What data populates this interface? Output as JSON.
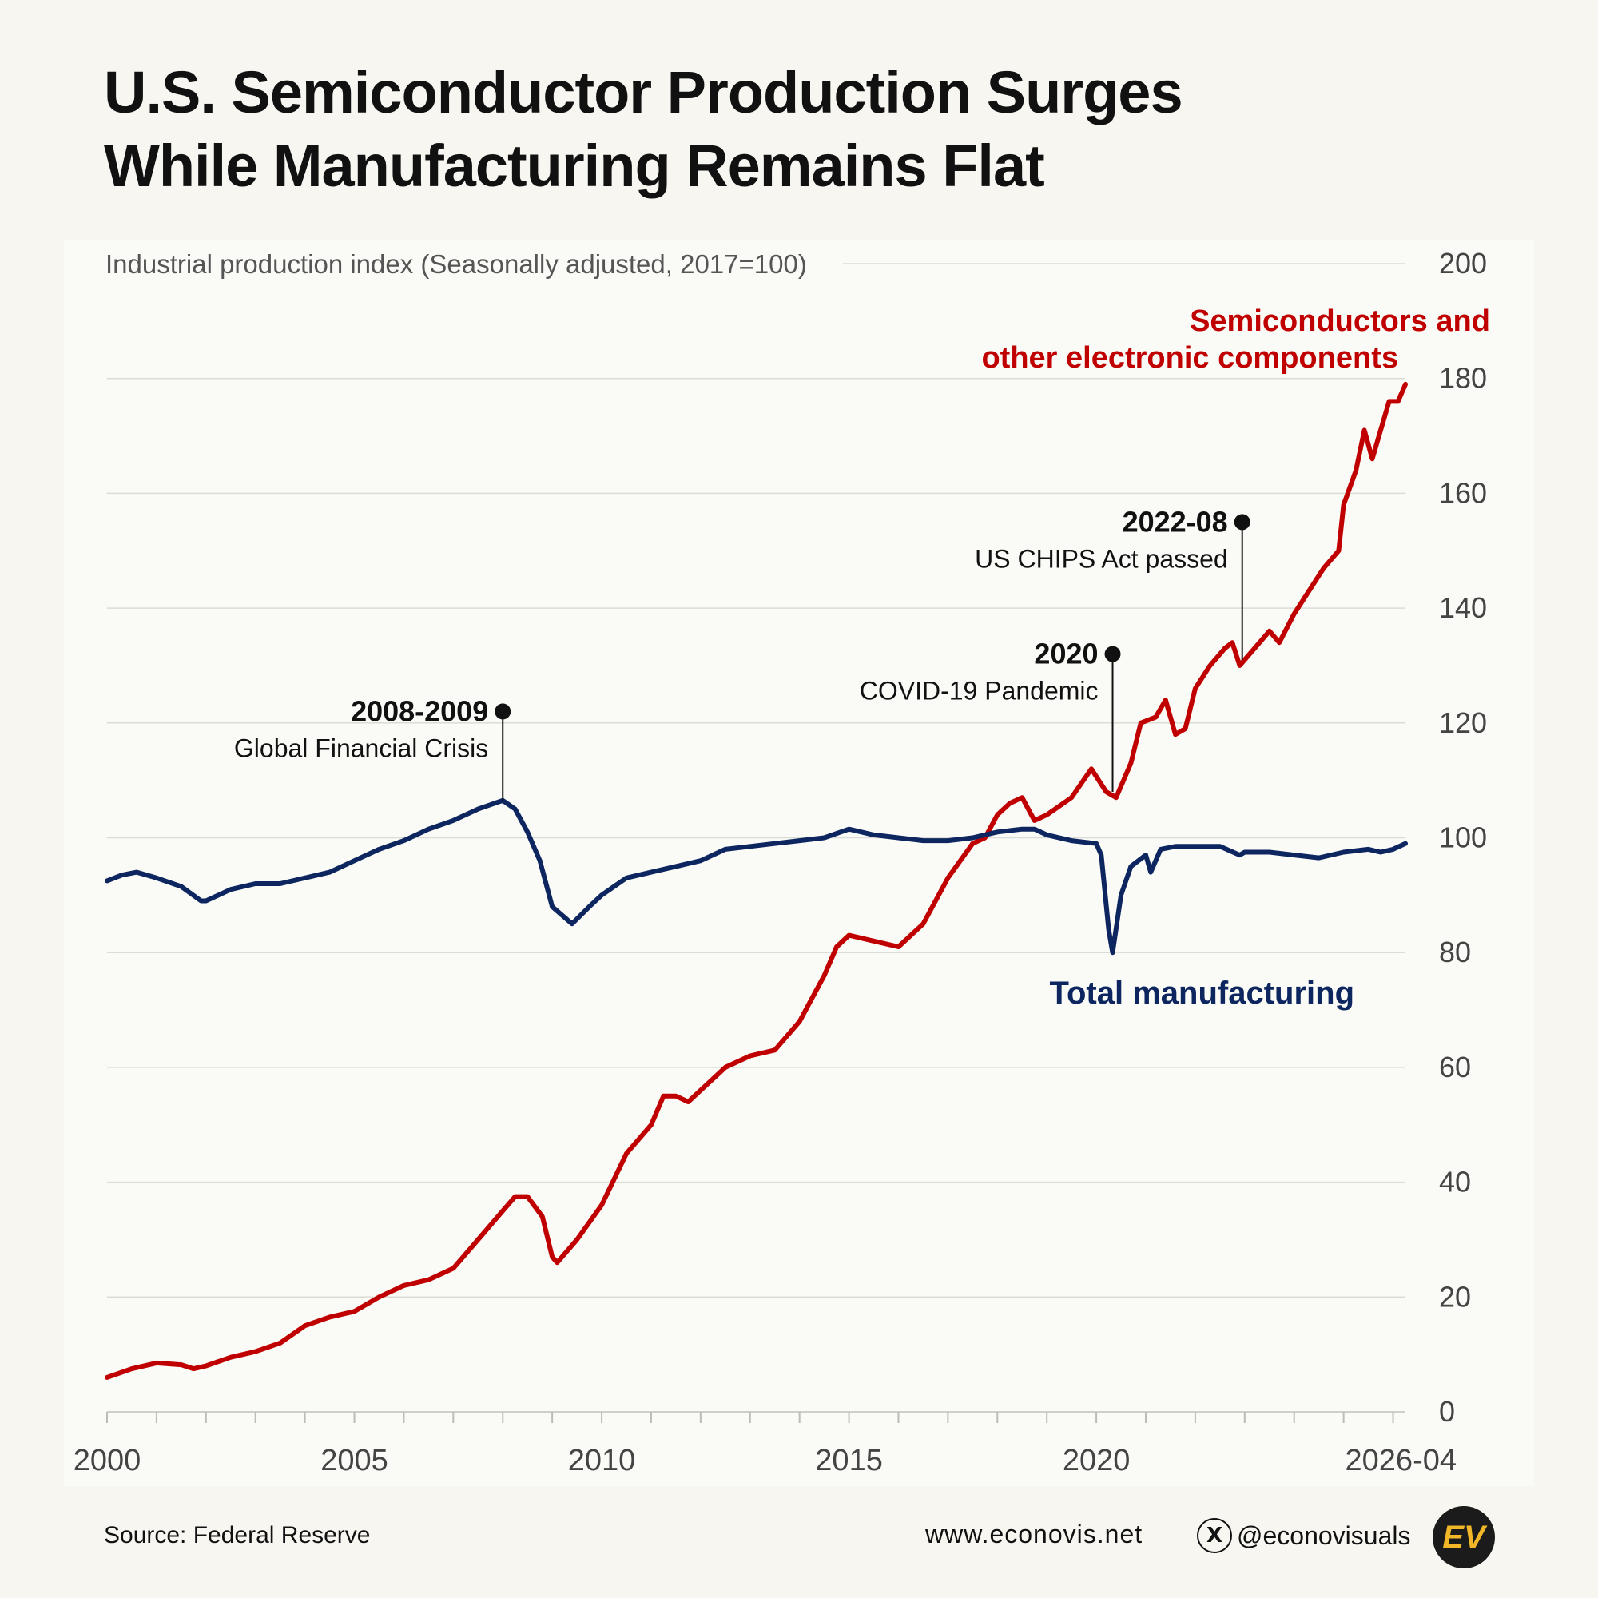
{
  "title_lines": [
    "U.S. Semiconductor Production Surges",
    "While Manufacturing Remains Flat"
  ],
  "footer": {
    "source": "Source: Federal Reserve",
    "website": "www.econovis.net",
    "handle": "@econovisuals",
    "x_icon": "x-logo-icon",
    "logo_text": "EV"
  },
  "colors": {
    "background": "#f7f6f1",
    "semiconductors": "#c00000",
    "manufacturing": "#0d2660",
    "grid": "#dcdcd6",
    "text": "#111111",
    "axis_text": "#444444"
  },
  "chart_data": {
    "type": "line",
    "ylabel": "Industrial production index (Seasonally adjusted, 2017=100)",
    "xlim": [
      "2000-01",
      "2026-04"
    ],
    "ylim": [
      0,
      200
    ],
    "y_ticks": [
      0,
      20,
      40,
      60,
      80,
      100,
      120,
      140,
      160,
      180,
      200
    ],
    "x_tick_labels": [
      {
        "x": 2000,
        "label": "2000"
      },
      {
        "x": 2005,
        "label": "2005"
      },
      {
        "x": 2010,
        "label": "2010"
      },
      {
        "x": 2015,
        "label": "2015"
      },
      {
        "x": 2020,
        "label": "2020"
      },
      {
        "x": 2026.25,
        "label": "2026-04"
      }
    ],
    "grid": true,
    "series": [
      {
        "name": "Semiconductors and other electronic components",
        "label_lines": [
          "Semiconductors and",
          "other electronic components"
        ],
        "color": "#c00000",
        "points": [
          [
            2000.0,
            6
          ],
          [
            2000.5,
            7.5
          ],
          [
            2001.0,
            8.5
          ],
          [
            2001.5,
            8.2
          ],
          [
            2001.75,
            7.5
          ],
          [
            2002.0,
            8
          ],
          [
            2002.5,
            9.5
          ],
          [
            2003.0,
            10.5
          ],
          [
            2003.5,
            12
          ],
          [
            2004.0,
            15
          ],
          [
            2004.5,
            16.5
          ],
          [
            2005.0,
            17.5
          ],
          [
            2005.5,
            20
          ],
          [
            2006.0,
            22
          ],
          [
            2006.5,
            23
          ],
          [
            2007.0,
            25
          ],
          [
            2007.5,
            30
          ],
          [
            2008.0,
            35
          ],
          [
            2008.25,
            37.5
          ],
          [
            2008.5,
            37.5
          ],
          [
            2008.8,
            34
          ],
          [
            2009.0,
            27
          ],
          [
            2009.1,
            26
          ],
          [
            2009.5,
            30
          ],
          [
            2010.0,
            36
          ],
          [
            2010.5,
            45
          ],
          [
            2011.0,
            50
          ],
          [
            2011.25,
            55
          ],
          [
            2011.5,
            55
          ],
          [
            2011.75,
            54
          ],
          [
            2012.0,
            56
          ],
          [
            2012.5,
            60
          ],
          [
            2013.0,
            62
          ],
          [
            2013.5,
            63
          ],
          [
            2014.0,
            68
          ],
          [
            2014.5,
            76
          ],
          [
            2014.75,
            81
          ],
          [
            2015.0,
            83
          ],
          [
            2015.5,
            82
          ],
          [
            2016.0,
            81
          ],
          [
            2016.5,
            85
          ],
          [
            2017.0,
            93
          ],
          [
            2017.5,
            99
          ],
          [
            2017.75,
            100
          ],
          [
            2018.0,
            104
          ],
          [
            2018.25,
            106
          ],
          [
            2018.5,
            107
          ],
          [
            2018.75,
            103
          ],
          [
            2019.0,
            104
          ],
          [
            2019.5,
            107
          ],
          [
            2019.9,
            112
          ],
          [
            2020.2,
            108
          ],
          [
            2020.4,
            107
          ],
          [
            2020.7,
            113
          ],
          [
            2020.9,
            120
          ],
          [
            2021.2,
            121
          ],
          [
            2021.4,
            124
          ],
          [
            2021.6,
            118
          ],
          [
            2021.8,
            119
          ],
          [
            2022.0,
            126
          ],
          [
            2022.3,
            130
          ],
          [
            2022.6,
            133
          ],
          [
            2022.75,
            134
          ],
          [
            2022.9,
            130
          ],
          [
            2023.2,
            133
          ],
          [
            2023.5,
            136
          ],
          [
            2023.7,
            134
          ],
          [
            2024.0,
            139
          ],
          [
            2024.3,
            143
          ],
          [
            2024.6,
            147
          ],
          [
            2024.9,
            150
          ],
          [
            2025.0,
            158
          ],
          [
            2025.25,
            164
          ],
          [
            2025.42,
            171
          ],
          [
            2025.58,
            166
          ],
          [
            2025.75,
            171
          ],
          [
            2025.92,
            176
          ],
          [
            2026.1,
            176
          ],
          [
            2026.25,
            179
          ]
        ]
      },
      {
        "name": "Total manufacturing",
        "label_lines": [
          "Total manufacturing"
        ],
        "color": "#0d2660",
        "points": [
          [
            2000.0,
            92.5
          ],
          [
            2000.3,
            93.5
          ],
          [
            2000.6,
            94
          ],
          [
            2001.0,
            93
          ],
          [
            2001.5,
            91.5
          ],
          [
            2001.9,
            89
          ],
          [
            2002.0,
            89
          ],
          [
            2002.5,
            91
          ],
          [
            2003.0,
            92
          ],
          [
            2003.5,
            92
          ],
          [
            2004.0,
            93
          ],
          [
            2004.5,
            94
          ],
          [
            2005.0,
            96
          ],
          [
            2005.5,
            98
          ],
          [
            2006.0,
            99.5
          ],
          [
            2006.5,
            101.5
          ],
          [
            2007.0,
            103
          ],
          [
            2007.5,
            105
          ],
          [
            2008.0,
            106.5
          ],
          [
            2008.25,
            105
          ],
          [
            2008.5,
            101
          ],
          [
            2008.75,
            96
          ],
          [
            2009.0,
            88
          ],
          [
            2009.4,
            85
          ],
          [
            2009.75,
            88
          ],
          [
            2010.0,
            90
          ],
          [
            2010.5,
            93
          ],
          [
            2011.0,
            94
          ],
          [
            2011.5,
            95
          ],
          [
            2012.0,
            96
          ],
          [
            2012.5,
            98
          ],
          [
            2013.0,
            98.5
          ],
          [
            2013.5,
            99
          ],
          [
            2014.0,
            99.5
          ],
          [
            2014.5,
            100
          ],
          [
            2015.0,
            101.5
          ],
          [
            2015.5,
            100.5
          ],
          [
            2016.0,
            100
          ],
          [
            2016.5,
            99.5
          ],
          [
            2017.0,
            99.5
          ],
          [
            2017.5,
            100
          ],
          [
            2018.0,
            101
          ],
          [
            2018.5,
            101.5
          ],
          [
            2018.75,
            101.5
          ],
          [
            2019.0,
            100.5
          ],
          [
            2019.5,
            99.5
          ],
          [
            2020.0,
            99
          ],
          [
            2020.1,
            97
          ],
          [
            2020.25,
            84
          ],
          [
            2020.33,
            80
          ],
          [
            2020.5,
            90
          ],
          [
            2020.7,
            95
          ],
          [
            2021.0,
            97
          ],
          [
            2021.1,
            94
          ],
          [
            2021.3,
            98
          ],
          [
            2021.6,
            98.5
          ],
          [
            2022.0,
            98.5
          ],
          [
            2022.5,
            98.5
          ],
          [
            2022.9,
            97
          ],
          [
            2023.0,
            97.5
          ],
          [
            2023.5,
            97.5
          ],
          [
            2024.0,
            97
          ],
          [
            2024.5,
            96.5
          ],
          [
            2025.0,
            97.5
          ],
          [
            2025.5,
            98
          ],
          [
            2025.75,
            97.5
          ],
          [
            2026.0,
            98
          ],
          [
            2026.25,
            99
          ]
        ]
      }
    ],
    "annotations": [
      {
        "x": 2008.0,
        "y_dot": 122,
        "y_line_end": 106.5,
        "year": "2008-2009",
        "text": "Global Financial Crisis"
      },
      {
        "x": 2020.33,
        "y_dot": 132,
        "y_line_end": 108,
        "year": "2020",
        "text": "COVID-19 Pandemic"
      },
      {
        "x": 2022.95,
        "y_dot": 155,
        "y_line_end": 131,
        "year": "2022-08",
        "text": "US CHIPS Act passed"
      }
    ]
  }
}
